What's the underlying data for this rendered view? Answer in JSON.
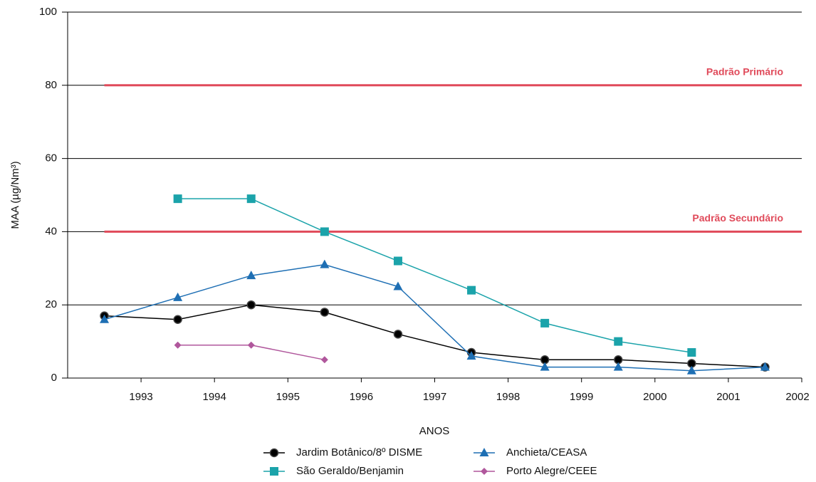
{
  "chart_data": {
    "type": "line",
    "ylabel": "MAA (µg/Nm³)",
    "xlabel": "ANOS",
    "categories": [
      "1993",
      "1994",
      "1995",
      "1996",
      "1997",
      "1998",
      "1999",
      "2000",
      "2001",
      "2002"
    ],
    "series": [
      {
        "name": "Jardim Botânico/8º DISME",
        "color": "#000000",
        "marker": "circle",
        "values": [
          17,
          16,
          20,
          18,
          12,
          7,
          5,
          5,
          4,
          3
        ]
      },
      {
        "name": "Anchieta/CEASA",
        "color": "#1e6fb4",
        "marker": "triangle",
        "values": [
          16,
          22,
          28,
          31,
          25,
          6,
          3,
          3,
          2,
          3
        ]
      },
      {
        "name": "São Geraldo/Benjamin",
        "color": "#1ba3aa",
        "marker": "square",
        "values": [
          null,
          49,
          49,
          40,
          32,
          24,
          15,
          10,
          7,
          null
        ]
      },
      {
        "name": "Porto Alegre/CEEE",
        "color": "#b0579c",
        "marker": "diamond",
        "values": [
          null,
          9,
          9,
          5,
          null,
          null,
          null,
          null,
          null,
          null
        ]
      }
    ],
    "reference_lines": [
      {
        "value": 80,
        "label": "Padrão Primário",
        "color": "#e04a5a"
      },
      {
        "value": 40,
        "label": "Padrão Secundário",
        "color": "#e04a5a"
      }
    ],
    "ylim": [
      0,
      100
    ],
    "yticks": [
      0,
      20,
      40,
      60,
      80,
      100
    ],
    "grid": true
  }
}
